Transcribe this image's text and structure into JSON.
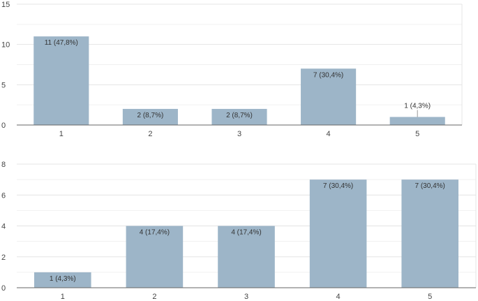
{
  "colors": {
    "bar": "#9db5c8",
    "background": "#ffffff"
  },
  "chart_data": [
    {
      "type": "bar",
      "categories": [
        "1",
        "2",
        "3",
        "4",
        "5"
      ],
      "values": [
        11,
        2,
        2,
        7,
        1
      ],
      "data_labels": [
        "11 (47,8%)",
        "2 (8,7%)",
        "2 (8,7%)",
        "7 (30,4%)",
        "1 (4,3%)"
      ],
      "yticks": [
        0,
        5,
        10,
        15
      ],
      "ylim": [
        0,
        15
      ],
      "grid": true,
      "title": "",
      "xlabel": "",
      "ylabel": ""
    },
    {
      "type": "bar",
      "categories": [
        "1",
        "2",
        "3",
        "4",
        "5"
      ],
      "values": [
        1,
        4,
        4,
        7,
        7
      ],
      "data_labels": [
        "1 (4,3%)",
        "4 (17,4%)",
        "4 (17,4%)",
        "7 (30,4%)",
        "7 (30,4%)"
      ],
      "yticks": [
        0,
        2,
        4,
        6,
        8
      ],
      "ylim": [
        0,
        8
      ],
      "grid": true,
      "title": "",
      "xlabel": "",
      "ylabel": ""
    }
  ]
}
